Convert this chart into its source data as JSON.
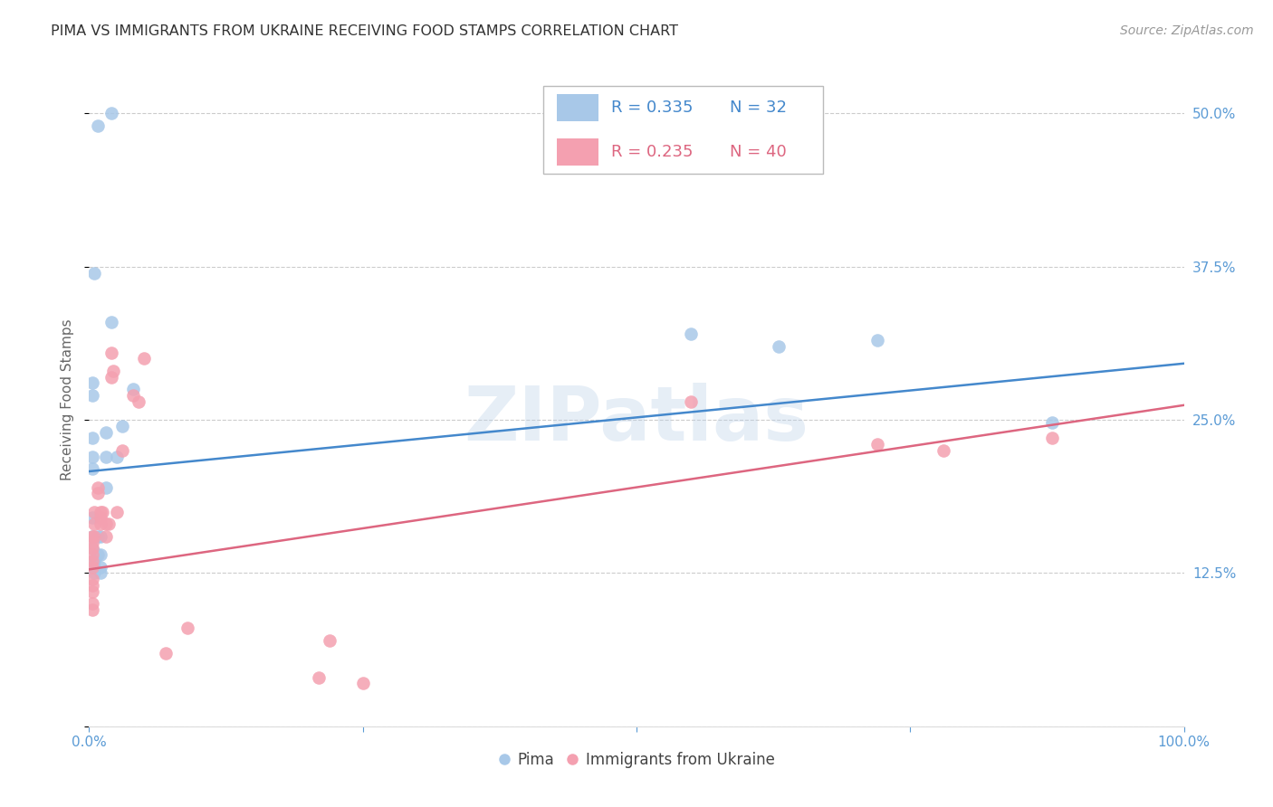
{
  "title": "PIMA VS IMMIGRANTS FROM UKRAINE RECEIVING FOOD STAMPS CORRELATION CHART",
  "source": "Source: ZipAtlas.com",
  "ylabel": "Receiving Food Stamps",
  "watermark": "ZIPatlas",
  "xlim": [
    0.0,
    1.0
  ],
  "ylim": [
    0.0,
    0.5333
  ],
  "yticks": [
    0.0,
    0.125,
    0.25,
    0.375,
    0.5
  ],
  "yticklabels": [
    "",
    "12.5%",
    "25.0%",
    "37.5%",
    "50.0%"
  ],
  "legend_blue_R": "0.335",
  "legend_blue_N": "32",
  "legend_pink_R": "0.235",
  "legend_pink_N": "40",
  "legend_blue_label": "Pima",
  "legend_pink_label": "Immigrants from Ukraine",
  "blue_color": "#a8c8e8",
  "pink_color": "#f4a0b0",
  "blue_line_color": "#4488cc",
  "pink_line_color": "#dd6680",
  "background_color": "#ffffff",
  "grid_color": "#cccccc",
  "title_color": "#333333",
  "axis_label_color": "#5b9bd5",
  "legend_box_color": "#5b9bd5",
  "blue_scatter_x": [
    0.008,
    0.02,
    0.005,
    0.003,
    0.003,
    0.003,
    0.003,
    0.003,
    0.003,
    0.003,
    0.003,
    0.003,
    0.005,
    0.005,
    0.005,
    0.008,
    0.008,
    0.01,
    0.01,
    0.01,
    0.01,
    0.015,
    0.015,
    0.015,
    0.02,
    0.025,
    0.03,
    0.04,
    0.55,
    0.63,
    0.72,
    0.88
  ],
  "blue_scatter_y": [
    0.49,
    0.5,
    0.37,
    0.28,
    0.27,
    0.235,
    0.22,
    0.21,
    0.17,
    0.155,
    0.145,
    0.135,
    0.135,
    0.13,
    0.125,
    0.155,
    0.14,
    0.155,
    0.14,
    0.13,
    0.125,
    0.24,
    0.22,
    0.195,
    0.33,
    0.22,
    0.245,
    0.275,
    0.32,
    0.31,
    0.315,
    0.248
  ],
  "pink_scatter_x": [
    0.003,
    0.003,
    0.003,
    0.003,
    0.003,
    0.003,
    0.003,
    0.003,
    0.003,
    0.003,
    0.003,
    0.005,
    0.005,
    0.005,
    0.008,
    0.008,
    0.01,
    0.01,
    0.01,
    0.012,
    0.015,
    0.015,
    0.018,
    0.02,
    0.02,
    0.022,
    0.025,
    0.03,
    0.04,
    0.045,
    0.05,
    0.07,
    0.09,
    0.21,
    0.22,
    0.25,
    0.55,
    0.72,
    0.78,
    0.88
  ],
  "pink_scatter_y": [
    0.155,
    0.15,
    0.145,
    0.14,
    0.135,
    0.13,
    0.12,
    0.115,
    0.11,
    0.1,
    0.095,
    0.175,
    0.165,
    0.155,
    0.195,
    0.19,
    0.175,
    0.17,
    0.165,
    0.175,
    0.165,
    0.155,
    0.165,
    0.285,
    0.305,
    0.29,
    0.175,
    0.225,
    0.27,
    0.265,
    0.3,
    0.06,
    0.08,
    0.04,
    0.07,
    0.035,
    0.265,
    0.23,
    0.225,
    0.235
  ],
  "blue_line_y_start": 0.208,
  "blue_line_y_end": 0.296,
  "pink_line_y_start": 0.128,
  "pink_line_y_end": 0.262
}
